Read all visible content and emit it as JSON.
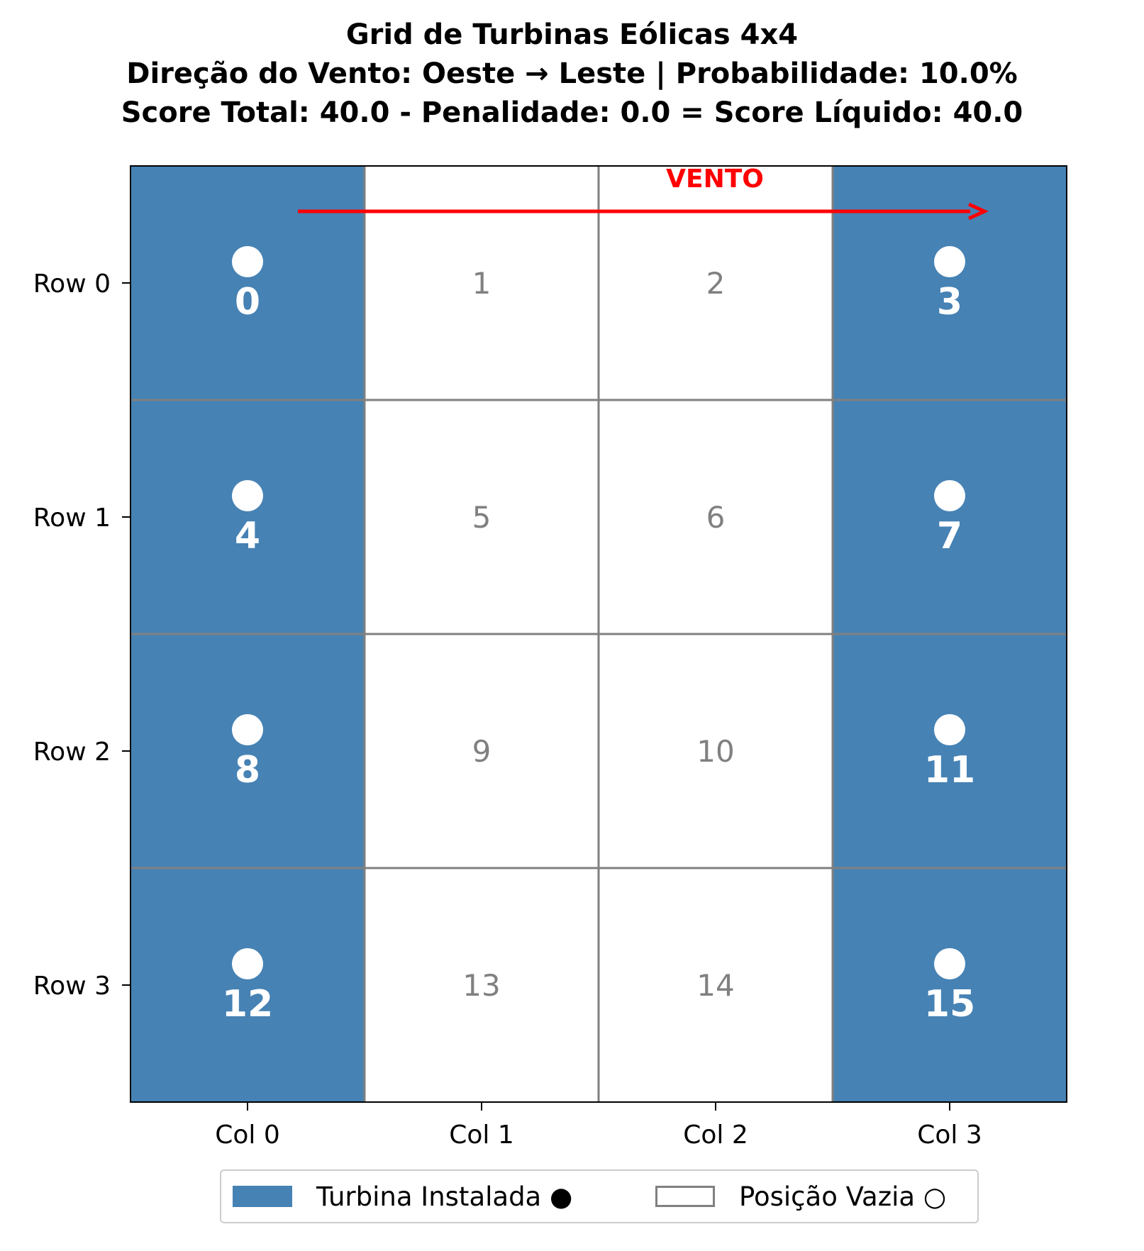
{
  "title": {
    "line1": "Grid de Turbinas Eólicas 4x4",
    "line2": "Direção do Vento: Oeste → Leste | Probabilidade: 10.0%",
    "line3": "Score Total: 40.0 - Penalidade: 0.0 = Score Líquido: 40.0"
  },
  "colors": {
    "turbine_fill": "#4682b4",
    "empty_fill": "#ffffff",
    "grid_line": "#808080",
    "wind": "#ff0000",
    "installed_label": "#ffffff",
    "empty_label": "#808080"
  },
  "chart_data": {
    "type": "heatmap",
    "rows": 4,
    "cols": 4,
    "row_labels": [
      "Row 0",
      "Row 1",
      "Row 2",
      "Row 3"
    ],
    "col_labels": [
      "Col 0",
      "Col 1",
      "Col 2",
      "Col 3"
    ],
    "cells": [
      {
        "id": "0",
        "row": 0,
        "col": 0,
        "turbine": true
      },
      {
        "id": "1",
        "row": 0,
        "col": 1,
        "turbine": false
      },
      {
        "id": "2",
        "row": 0,
        "col": 2,
        "turbine": false
      },
      {
        "id": "3",
        "row": 0,
        "col": 3,
        "turbine": true
      },
      {
        "id": "4",
        "row": 1,
        "col": 0,
        "turbine": true
      },
      {
        "id": "5",
        "row": 1,
        "col": 1,
        "turbine": false
      },
      {
        "id": "6",
        "row": 1,
        "col": 2,
        "turbine": false
      },
      {
        "id": "7",
        "row": 1,
        "col": 3,
        "turbine": true
      },
      {
        "id": "8",
        "row": 2,
        "col": 0,
        "turbine": true
      },
      {
        "id": "9",
        "row": 2,
        "col": 1,
        "turbine": false
      },
      {
        "id": "10",
        "row": 2,
        "col": 2,
        "turbine": false
      },
      {
        "id": "11",
        "row": 2,
        "col": 3,
        "turbine": true
      },
      {
        "id": "12",
        "row": 3,
        "col": 0,
        "turbine": true
      },
      {
        "id": "13",
        "row": 3,
        "col": 1,
        "turbine": false
      },
      {
        "id": "14",
        "row": 3,
        "col": 2,
        "turbine": false
      },
      {
        "id": "15",
        "row": 3,
        "col": 3,
        "turbine": true
      }
    ],
    "wind": {
      "label": "VENTO",
      "direction": "Oeste → Leste"
    },
    "legend_placement": "bottom-center",
    "legend": [
      {
        "name": "Turbina Instalada ●",
        "kind": "installed"
      },
      {
        "name": "Posição Vazia ○",
        "kind": "empty"
      }
    ]
  }
}
